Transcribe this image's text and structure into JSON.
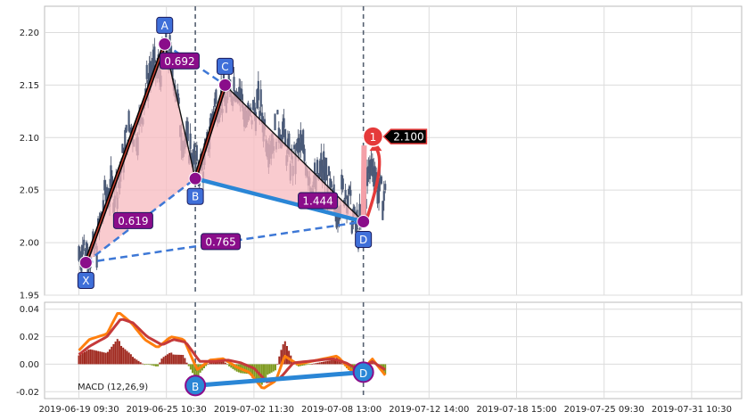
{
  "chart_data": {
    "type": "candlestick",
    "title": "",
    "x_ticks": [
      "2019-06-19 09:30",
      "2019-06-25 10:30",
      "2019-07-02 11:30",
      "2019-07-08 13:00",
      "2019-07-12 14:00",
      "2019-07-18 15:00",
      "2019-07-25 09:30",
      "2019-07-31 10:30"
    ],
    "price_ticks": [
      "1.95",
      "2.00",
      "2.05",
      "2.10",
      "2.15",
      "2.20"
    ],
    "macd_ticks": [
      "0.04",
      "0.02",
      "0.00",
      "-0.02"
    ],
    "price_range": [
      1.95,
      2.225
    ],
    "macd_range": [
      -0.025,
      0.045
    ],
    "grid": true,
    "pattern_points": [
      {
        "label": "X",
        "x": 0.08,
        "price": 1.981
      },
      {
        "label": "A",
        "x": 0.98,
        "price": 2.189
      },
      {
        "label": "B",
        "x": 1.33,
        "price": 2.061
      },
      {
        "label": "C",
        "x": 1.67,
        "price": 2.15
      },
      {
        "label": "D",
        "x": 3.25,
        "price": 2.02
      }
    ],
    "ratios": [
      {
        "label": "0.619",
        "x": 0.62,
        "price": 2.021
      },
      {
        "label": "0.692",
        "x": 1.15,
        "price": 2.173
      },
      {
        "label": "1.444",
        "x": 2.73,
        "price": 2.04
      },
      {
        "label": "0.765",
        "x": 1.62,
        "price": 2.001
      }
    ],
    "vertical_markers_x": [
      1.33,
      3.25
    ],
    "target": {
      "label": "1",
      "value_label": "2.100",
      "x": 3.36,
      "price": 2.101
    },
    "macd_divergence": [
      {
        "label": "B",
        "x": 1.33,
        "value": -0.0155
      },
      {
        "label": "D",
        "x": 3.25,
        "value": -0.0058
      }
    ],
    "macd_label": "MACD (12,26,9)",
    "colors": {
      "bullish_candle": "#4a5a78",
      "pattern_fill": "#f7b9bf",
      "xa_leg": "#000000",
      "dashed": "#3e78d6",
      "bd_line": "#2a86d6",
      "point": "#8a0d8a",
      "label_box": "#3f6fd9",
      "ratio_box": "#8a0d8a",
      "target_red": "#e53a3a",
      "macd_line": "#ff7f0e",
      "signal_line": "#c53a3a",
      "hist_pos": "#a0291f",
      "hist_neg": "#7e9a1e"
    },
    "macd_keypoints": {
      "macd": [
        [
          0,
          0.01
        ],
        [
          0.12,
          0.018
        ],
        [
          0.32,
          0.022
        ],
        [
          0.45,
          0.038
        ],
        [
          0.6,
          0.03
        ],
        [
          0.75,
          0.018
        ],
        [
          0.9,
          0.012
        ],
        [
          1.05,
          0.02
        ],
        [
          1.2,
          0.018
        ],
        [
          1.35,
          -0.004
        ],
        [
          1.5,
          0.003
        ],
        [
          1.65,
          0.004
        ],
        [
          1.8,
          -0.002
        ],
        [
          1.95,
          -0.006
        ],
        [
          2.1,
          -0.018
        ],
        [
          2.25,
          -0.012
        ],
        [
          2.35,
          0.006
        ],
        [
          2.5,
          0.0
        ],
        [
          2.65,
          0.002
        ],
        [
          2.8,
          0.004
        ],
        [
          2.95,
          0.006
        ],
        [
          3.1,
          -0.004
        ],
        [
          3.2,
          -0.008
        ],
        [
          3.35,
          0.004
        ],
        [
          3.5,
          -0.008
        ]
      ],
      "signal": [
        [
          0,
          0.007
        ],
        [
          0.12,
          0.013
        ],
        [
          0.32,
          0.02
        ],
        [
          0.48,
          0.033
        ],
        [
          0.62,
          0.03
        ],
        [
          0.78,
          0.02
        ],
        [
          0.95,
          0.014
        ],
        [
          1.08,
          0.018
        ],
        [
          1.22,
          0.016
        ],
        [
          1.38,
          0.002
        ],
        [
          1.55,
          0.002
        ],
        [
          1.7,
          0.003
        ],
        [
          1.85,
          0.001
        ],
        [
          2.0,
          -0.003
        ],
        [
          2.15,
          -0.013
        ],
        [
          2.3,
          -0.01
        ],
        [
          2.45,
          0.001
        ],
        [
          2.6,
          0.002
        ],
        [
          2.75,
          0.003
        ],
        [
          2.9,
          0.004
        ],
        [
          3.05,
          0.001
        ],
        [
          3.2,
          -0.004
        ],
        [
          3.35,
          0.002
        ],
        [
          3.5,
          -0.004
        ]
      ]
    }
  }
}
